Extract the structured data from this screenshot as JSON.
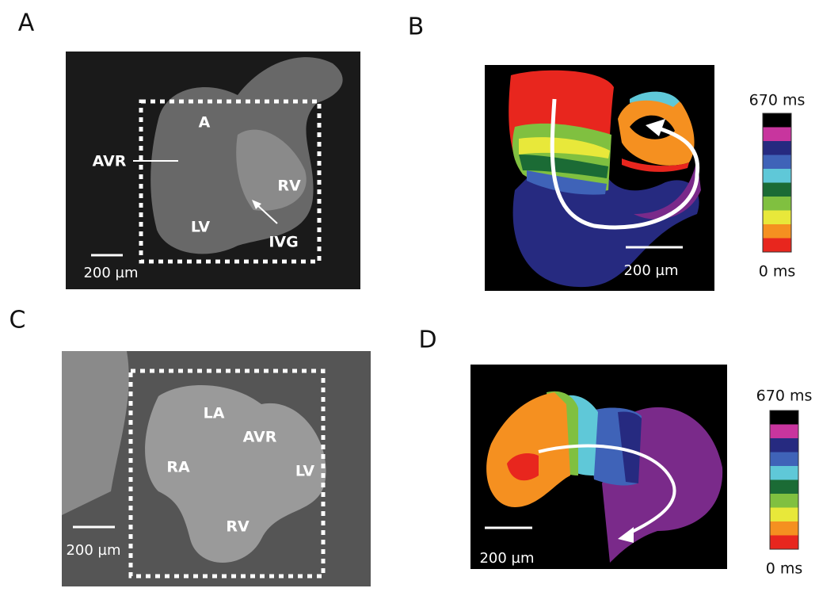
{
  "panels": [
    {
      "letter": "A",
      "labels": [
        "A",
        "AVR",
        "RV",
        "LV",
        "IVG"
      ],
      "scale_bar": "200 µm"
    },
    {
      "letter": "B",
      "scale_bar": "200 µm",
      "colorbar": {
        "max": "670 ms",
        "min": "0 ms"
      }
    },
    {
      "letter": "C",
      "labels": [
        "LA",
        "AVR",
        "RA",
        "LV",
        "RV"
      ],
      "scale_bar": "200 µm"
    },
    {
      "letter": "D",
      "scale_bar": "200 µm",
      "colorbar": {
        "max": "670 ms",
        "min": "0 ms"
      }
    }
  ]
}
